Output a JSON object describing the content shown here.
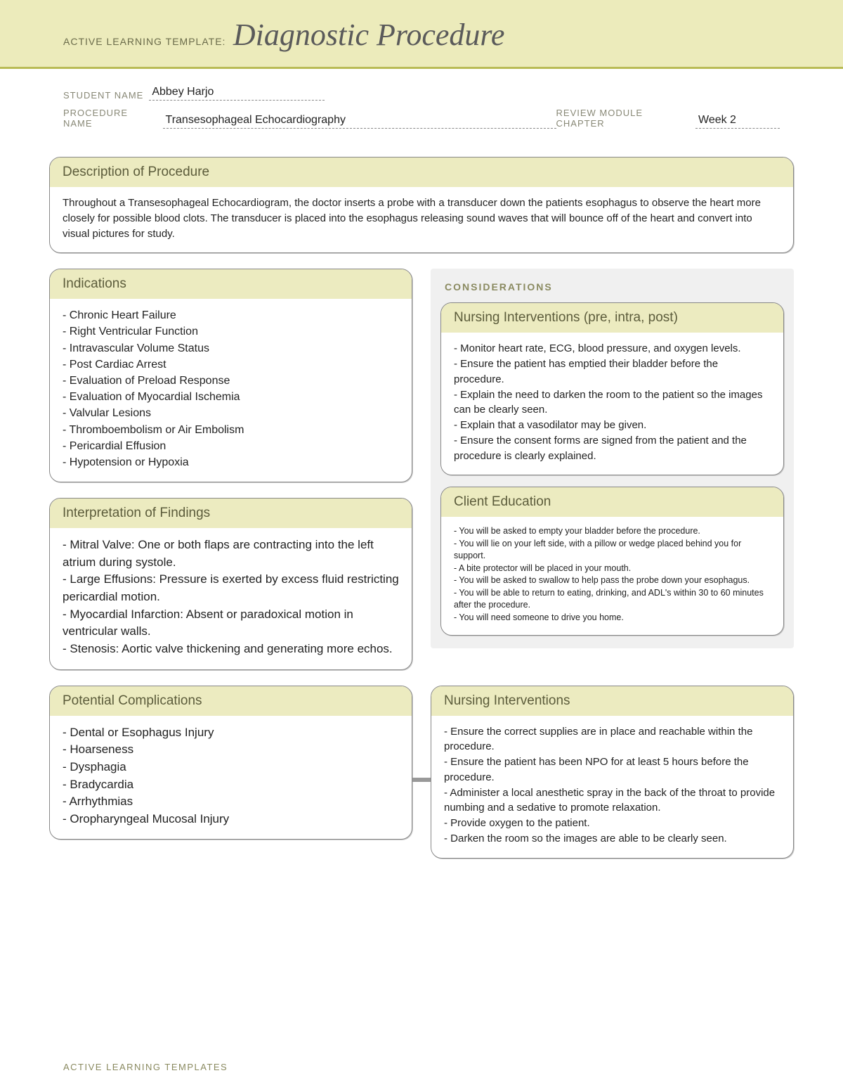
{
  "colors": {
    "banner_bg": "#ecebbb",
    "banner_border": "#b9bb56",
    "box_header_bg": "#ecebc0",
    "box_border": "#888888",
    "considerations_bg": "#f0f0f0",
    "label_color": "#888876",
    "title_color": "#5a5a5a",
    "text_color": "#222222"
  },
  "header": {
    "prefix": "ACTIVE LEARNING TEMPLATE:",
    "title": "Diagnostic Procedure"
  },
  "meta": {
    "student_label": "STUDENT NAME",
    "student_value": "Abbey Harjo",
    "procedure_label": "PROCEDURE NAME",
    "procedure_value": "Transesophageal Echocardiography",
    "module_label": "REVIEW MODULE CHAPTER",
    "module_value": "Week 2"
  },
  "description": {
    "title": "Description of Procedure",
    "body": "Throughout a Transesophageal Echocardiogram, the doctor inserts a probe with a transducer down the patients esophagus to observe the heart more closely for possible blood clots. The transducer is placed into the esophagus releasing sound waves that will bounce off of the heart and convert into visual pictures for study."
  },
  "indications": {
    "title": "Indications",
    "items": [
      "- Chronic Heart Failure",
      "- Right Ventricular Function",
      "- Intravascular Volume Status",
      "- Post Cardiac Arrest",
      "- Evaluation of Preload Response",
      "- Evaluation of Myocardial Ischemia",
      "- Valvular Lesions",
      "- Thromboembolism or Air Embolism",
      "- Pericardial Effusion",
      "- Hypotension or Hypoxia"
    ]
  },
  "interpretation": {
    "title": "Interpretation of Findings",
    "items": [
      "- Mitral Valve: One or both flaps are contracting into the left atrium during systole.",
      "- Large Effusions: Pressure is exerted by excess fluid restricting pericardial motion.",
      "- Myocardial Infarction: Absent or paradoxical motion in ventricular walls.",
      "- Stenosis: Aortic valve thickening and generating more echos."
    ]
  },
  "complications": {
    "title": "Potential Complications",
    "items": [
      "- Dental or Esophagus Injury",
      "- Hoarseness",
      "- Dysphagia",
      "- Bradycardia",
      "- Arrhythmias",
      "- Oropharyngeal Mucosal Injury"
    ]
  },
  "considerations_label": "CONSIDERATIONS",
  "nursing_pre": {
    "title": "Nursing Interventions (pre, intra, post)",
    "items": [
      "- Monitor heart rate, ECG, blood pressure, and oxygen levels.",
      "- Ensure the patient has emptied their bladder before the procedure.",
      "- Explain the need to darken the room to the patient so the images can be clearly seen.",
      "- Explain that a vasodilator may be given.",
      "- Ensure the consent forms are signed from the patient and the procedure is clearly explained."
    ]
  },
  "client_education": {
    "title": "Client Education",
    "items": [
      "- You will be asked to empty your bladder before the procedure.",
      "- You will lie on your left side, with a pillow or wedge placed behind you for support.",
      "- A bite protector will be placed in your mouth.",
      "- You will be asked to swallow to help pass the probe down your esophagus.",
      "- You will be able to return to eating, drinking, and ADL's within 30 to 60 minutes after the procedure.",
      "- You will need someone to drive you home."
    ]
  },
  "nursing_interventions": {
    "title": "Nursing Interventions",
    "items": [
      "- Ensure the correct supplies are in place and reachable within the procedure.",
      "- Ensure the patient has been NPO for at least 5 hours before the procedure.",
      "- Administer a local anesthetic spray in the back of the throat to provide numbing and a sedative to promote relaxation.",
      "- Provide oxygen to the patient.",
      "- Darken the room so the images are able to be clearly seen."
    ]
  },
  "footer": "ACTIVE LEARNING TEMPLATES"
}
